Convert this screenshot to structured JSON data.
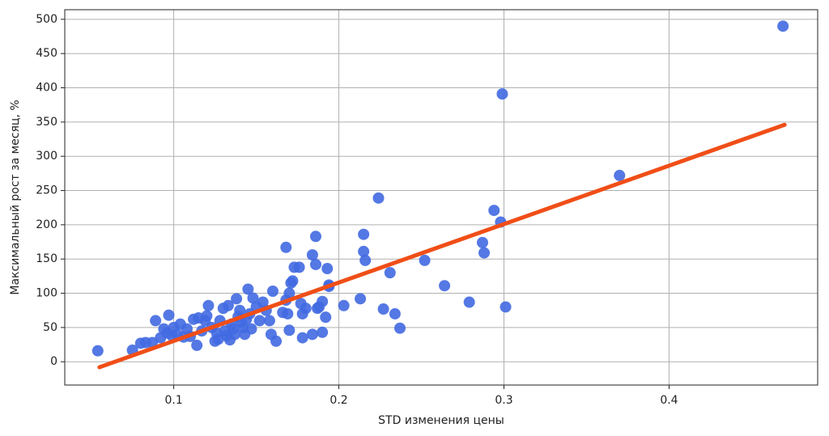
{
  "chart_data": {
    "type": "scatter",
    "xlabel": "STD изменения цены",
    "ylabel": "Максимальный рост за месяц, %",
    "xlim": [
      0.034,
      0.49
    ],
    "ylim": [
      -34,
      514
    ],
    "xticks": [
      0.1,
      0.2,
      0.3,
      0.4
    ],
    "yticks": [
      0,
      50,
      100,
      150,
      200,
      250,
      300,
      350,
      400,
      450,
      500
    ],
    "grid": true,
    "color": "#4169e1",
    "x": [
      0.054,
      0.075,
      0.08,
      0.083,
      0.087,
      0.089,
      0.092,
      0.094,
      0.096,
      0.097,
      0.099,
      0.1,
      0.102,
      0.104,
      0.106,
      0.108,
      0.11,
      0.112,
      0.114,
      0.115,
      0.117,
      0.119,
      0.12,
      0.121,
      0.123,
      0.125,
      0.126,
      0.127,
      0.128,
      0.13,
      0.131,
      0.132,
      0.133,
      0.134,
      0.135,
      0.136,
      0.137,
      0.138,
      0.139,
      0.14,
      0.141,
      0.142,
      0.143,
      0.144,
      0.145,
      0.146,
      0.147,
      0.148,
      0.15,
      0.152,
      0.154,
      0.156,
      0.158,
      0.159,
      0.16,
      0.162,
      0.166,
      0.168,
      0.168,
      0.169,
      0.17,
      0.17,
      0.171,
      0.172,
      0.173,
      0.176,
      0.177,
      0.178,
      0.178,
      0.18,
      0.184,
      0.184,
      0.186,
      0.186,
      0.187,
      0.188,
      0.19,
      0.19,
      0.192,
      0.193,
      0.194,
      0.194,
      0.203,
      0.213,
      0.215,
      0.215,
      0.216,
      0.224,
      0.227,
      0.231,
      0.234,
      0.237,
      0.252,
      0.264,
      0.279,
      0.287,
      0.288,
      0.294,
      0.298,
      0.299,
      0.301,
      0.37,
      0.469
    ],
    "values": [
      16,
      17,
      27,
      28,
      28,
      60,
      35,
      48,
      42,
      68,
      38,
      50,
      40,
      55,
      36,
      48,
      37,
      62,
      24,
      64,
      45,
      60,
      67,
      82,
      50,
      30,
      42,
      33,
      60,
      78,
      45,
      38,
      82,
      32,
      55,
      48,
      40,
      92,
      66,
      75,
      58,
      50,
      40,
      62,
      106,
      70,
      48,
      93,
      80,
      60,
      87,
      75,
      60,
      40,
      103,
      30,
      72,
      167,
      90,
      70,
      100,
      46,
      115,
      118,
      138,
      138,
      85,
      70,
      35,
      78,
      40,
      156,
      183,
      142,
      78,
      80,
      88,
      43,
      65,
      136,
      110,
      112,
      82,
      92,
      186,
      161,
      148,
      239,
      77,
      130,
      70,
      49,
      148,
      111,
      87,
      174,
      159,
      221,
      204,
      391,
      80,
      272,
      490
    ],
    "trend": {
      "color": "#f04e17",
      "x": [
        0.055,
        0.47
      ],
      "values": [
        -8,
        346
      ]
    }
  }
}
